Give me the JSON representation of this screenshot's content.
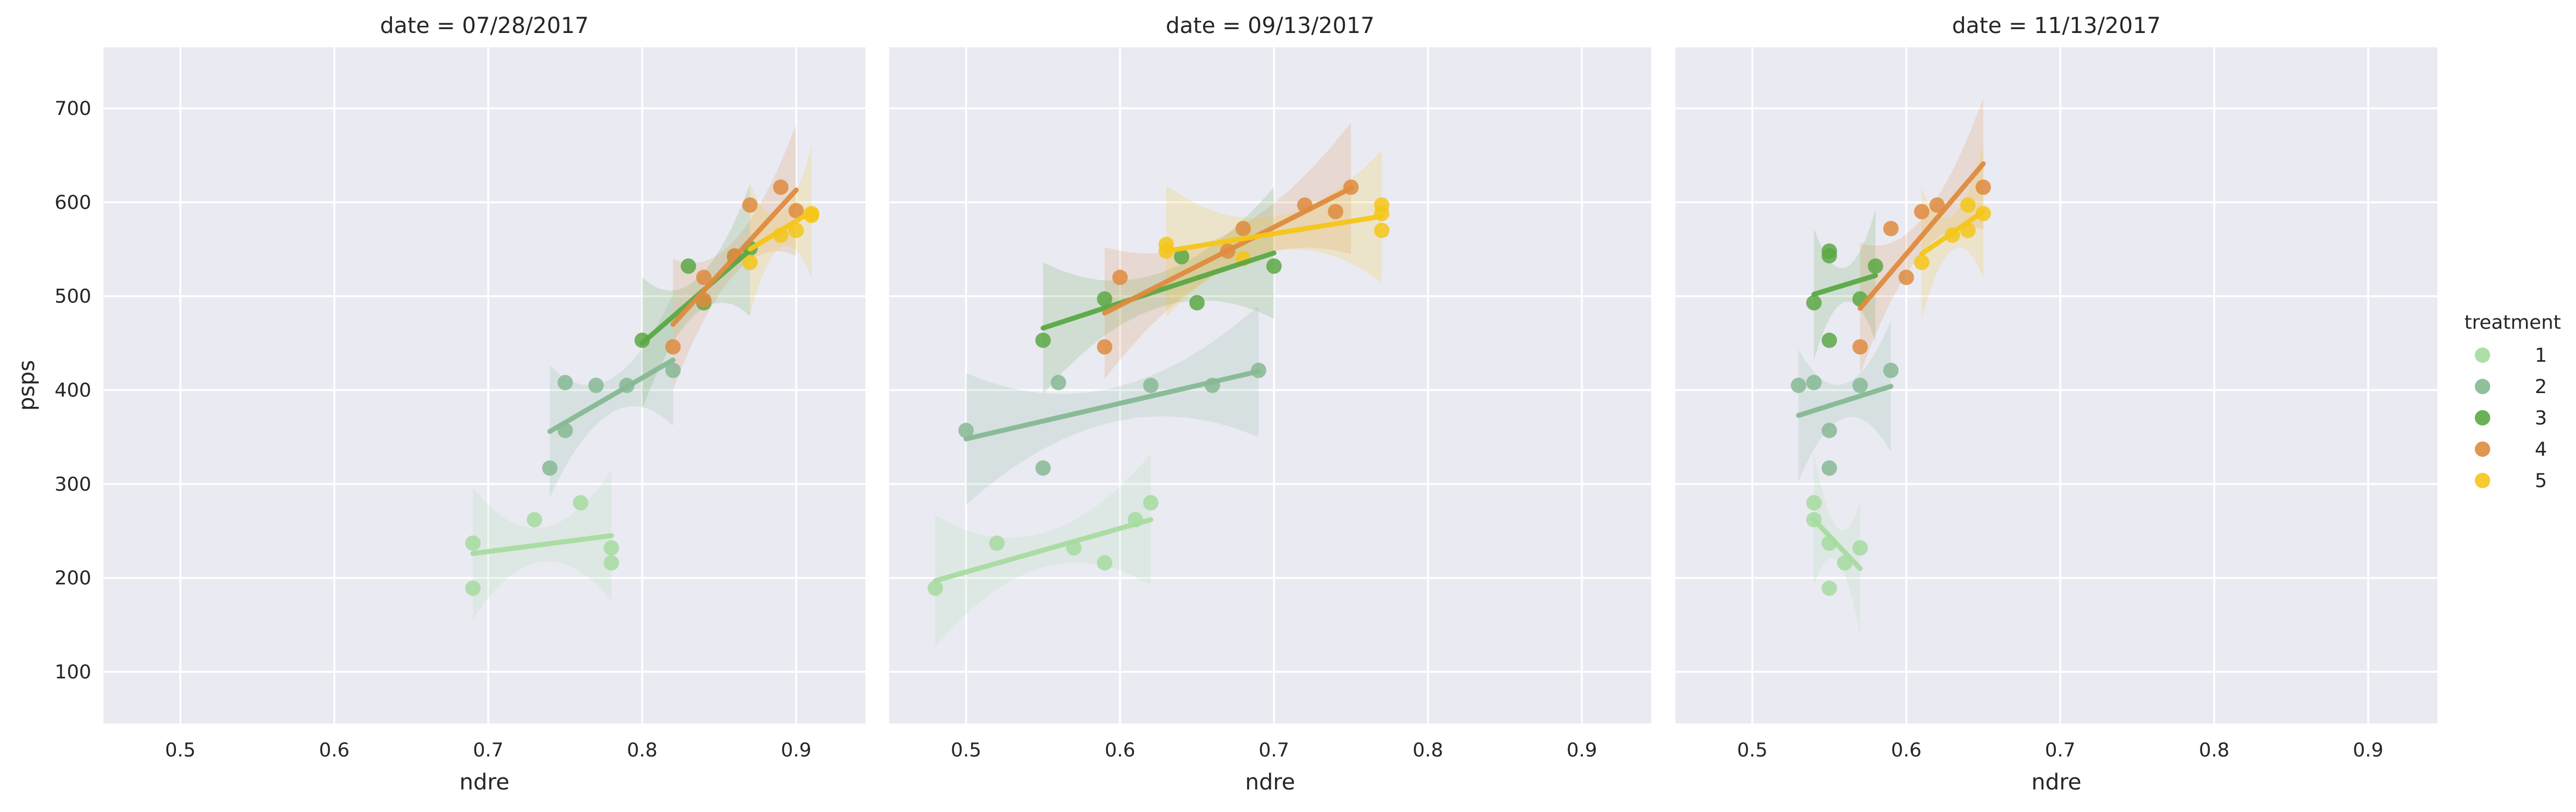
{
  "chart_data": {
    "type": "scatter",
    "ylabel": "psps",
    "xlabel": "ndre",
    "xlim": [
      0.45,
      0.945
    ],
    "ylim": [
      45,
      765
    ],
    "x_ticks": [
      "0.5",
      "0.6",
      "0.7",
      "0.8",
      "0.9"
    ],
    "y_ticks": [
      "100",
      "200",
      "300",
      "400",
      "500",
      "600",
      "700"
    ],
    "grid": true,
    "legend_position": "right",
    "legend_title": "treatment",
    "background": "#eaeaf2",
    "series_styles": [
      {
        "name": "1",
        "color": "#a6dba0"
      },
      {
        "name": "2",
        "color": "#86b894"
      },
      {
        "name": "3",
        "color": "#5aa845"
      },
      {
        "name": "4",
        "color": "#de8b3e"
      },
      {
        "name": "5",
        "color": "#f5c518"
      }
    ],
    "panels": [
      {
        "title": "date = 07/28/2017",
        "series": [
          {
            "name": "1",
            "x": [
              0.69,
              0.69,
              0.73,
              0.76,
              0.78,
              0.78
            ],
            "y": [
              237,
              189,
              262,
              280,
              232,
              216
            ]
          },
          {
            "name": "2",
            "x": [
              0.74,
              0.75,
              0.75,
              0.77,
              0.79,
              0.82
            ],
            "y": [
              317,
              408,
              357,
              405,
              405,
              421
            ]
          },
          {
            "name": "3",
            "x": [
              0.8,
              0.83,
              0.84,
              0.86,
              0.87
            ],
            "y": [
              453,
              532,
              493,
              542,
              551
            ]
          },
          {
            "name": "4",
            "x": [
              0.82,
              0.84,
              0.84,
              0.86,
              0.87,
              0.89,
              0.9
            ],
            "y": [
              446,
              520,
              496,
              543,
              597,
              616,
              591
            ]
          },
          {
            "name": "5",
            "x": [
              0.87,
              0.89,
              0.9,
              0.91,
              0.91
            ],
            "y": [
              536,
              565,
              570,
              588,
              586
            ]
          }
        ],
        "trend_lines": [
          {
            "name": "1",
            "x": [
              0.69,
              0.78
            ],
            "y": [
              226,
              245
            ]
          },
          {
            "name": "2",
            "x": [
              0.74,
              0.82
            ],
            "y": [
              356,
              432
            ]
          },
          {
            "name": "3",
            "x": [
              0.8,
              0.87
            ],
            "y": [
              450,
              549
            ]
          },
          {
            "name": "4",
            "x": [
              0.82,
              0.9
            ],
            "y": [
              470,
              613
            ]
          },
          {
            "name": "5",
            "x": [
              0.87,
              0.91
            ],
            "y": [
              550,
              590
            ]
          }
        ]
      },
      {
        "title": "date = 09/13/2017",
        "series": [
          {
            "name": "1",
            "x": [
              0.48,
              0.52,
              0.57,
              0.59,
              0.61,
              0.62
            ],
            "y": [
              189,
              237,
              232,
              216,
              262,
              280
            ]
          },
          {
            "name": "2",
            "x": [
              0.5,
              0.55,
              0.56,
              0.62,
              0.66,
              0.69
            ],
            "y": [
              357,
              317,
              408,
              405,
              405,
              421
            ]
          },
          {
            "name": "3",
            "x": [
              0.55,
              0.59,
              0.64,
              0.65,
              0.7
            ],
            "y": [
              453,
              497,
              542,
              493,
              532
            ]
          },
          {
            "name": "4",
            "x": [
              0.59,
              0.6,
              0.67,
              0.68,
              0.72,
              0.74,
              0.75
            ],
            "y": [
              446,
              520,
              548,
              572,
              597,
              590,
              616
            ]
          },
          {
            "name": "5",
            "x": [
              0.63,
              0.63,
              0.68,
              0.77,
              0.77,
              0.77
            ],
            "y": [
              555,
              548,
              540,
              597,
              588,
              570
            ]
          }
        ],
        "trend_lines": [
          {
            "name": "1",
            "x": [
              0.48,
              0.62
            ],
            "y": [
              197,
              262
            ]
          },
          {
            "name": "2",
            "x": [
              0.5,
              0.69
            ],
            "y": [
              348,
              420
            ]
          },
          {
            "name": "3",
            "x": [
              0.55,
              0.7
            ],
            "y": [
              466,
              546
            ]
          },
          {
            "name": "4",
            "x": [
              0.59,
              0.75
            ],
            "y": [
              482,
              615
            ]
          },
          {
            "name": "5",
            "x": [
              0.63,
              0.77
            ],
            "y": [
              548,
              585
            ]
          }
        ]
      },
      {
        "title": "date = 11/13/2017",
        "series": [
          {
            "name": "1",
            "x": [
              0.54,
              0.54,
              0.55,
              0.55,
              0.56,
              0.57
            ],
            "y": [
              280,
              262,
              237,
              189,
              216,
              232
            ]
          },
          {
            "name": "2",
            "x": [
              0.53,
              0.54,
              0.55,
              0.55,
              0.57,
              0.59
            ],
            "y": [
              405,
              408,
              357,
              317,
              405,
              421
            ]
          },
          {
            "name": "3",
            "x": [
              0.54,
              0.55,
              0.55,
              0.55,
              0.57,
              0.58
            ],
            "y": [
              493,
              548,
              543,
              453,
              497,
              532
            ]
          },
          {
            "name": "4",
            "x": [
              0.57,
              0.59,
              0.6,
              0.61,
              0.62,
              0.65
            ],
            "y": [
              446,
              572,
              520,
              590,
              597,
              616
            ]
          },
          {
            "name": "5",
            "x": [
              0.61,
              0.63,
              0.64,
              0.64,
              0.65
            ],
            "y": [
              536,
              565,
              570,
              597,
              588
            ]
          }
        ],
        "trend_lines": [
          {
            "name": "1",
            "x": [
              0.54,
              0.57
            ],
            "y": [
              262,
              210
            ]
          },
          {
            "name": "2",
            "x": [
              0.53,
              0.59
            ],
            "y": [
              373,
              404
            ]
          },
          {
            "name": "3",
            "x": [
              0.54,
              0.58
            ],
            "y": [
              502,
              522
            ]
          },
          {
            "name": "4",
            "x": [
              0.57,
              0.65
            ],
            "y": [
              487,
              641
            ]
          },
          {
            "name": "5",
            "x": [
              0.61,
              0.65
            ],
            "y": [
              545,
              590
            ]
          }
        ]
      }
    ]
  }
}
